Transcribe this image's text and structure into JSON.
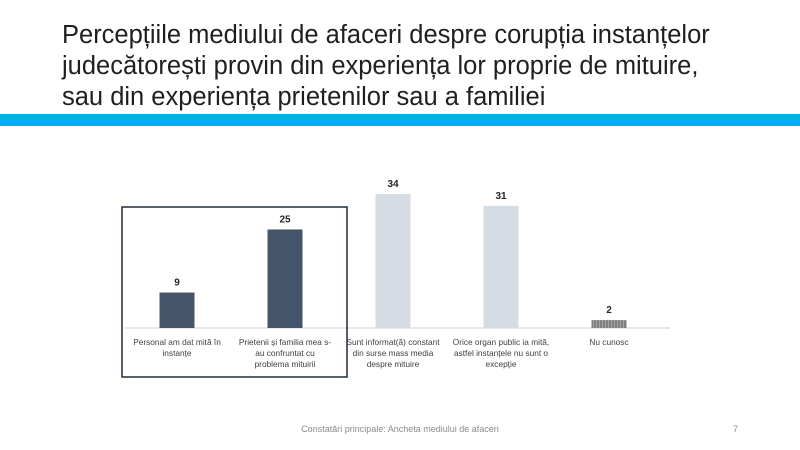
{
  "slide": {
    "title_lines": [
      "Percepțiile mediului de afaceri despre corupția instanțelor",
      "judecătorești provin din experiența lor proprie de mituire,",
      "sau din experiența prietenilor sau a familiei"
    ],
    "footer": "Constatări principale: Ancheta mediului de afaceri",
    "page_number": "7",
    "accent_color": "#00aeef"
  },
  "chart_data": {
    "type": "bar",
    "categories": [
      [
        "Personal am dat mită în",
        "instanțe"
      ],
      [
        "Prietenii și familia mea s-",
        "au confruntat cu",
        "problema mituirii"
      ],
      [
        "Sunt informat(ă) constant",
        "din surse mass media",
        "despre mituire"
      ],
      [
        "Orice organ public ia mită,",
        "astfel instanțele nu sunt o",
        "excepție"
      ],
      [
        "Nu cunosc"
      ]
    ],
    "values": [
      9,
      25,
      34,
      31,
      2
    ],
    "data_labels": [
      "9",
      "25",
      "34",
      "31",
      "2"
    ],
    "ylim": [
      0,
      34
    ],
    "bar_colors": [
      "#44546a",
      "#44546a",
      "#d6dce4",
      "#d6dce4",
      "#808080"
    ],
    "highlight_box_categories": [
      0,
      1
    ],
    "highlight_box_color": "#1f2a3c"
  }
}
